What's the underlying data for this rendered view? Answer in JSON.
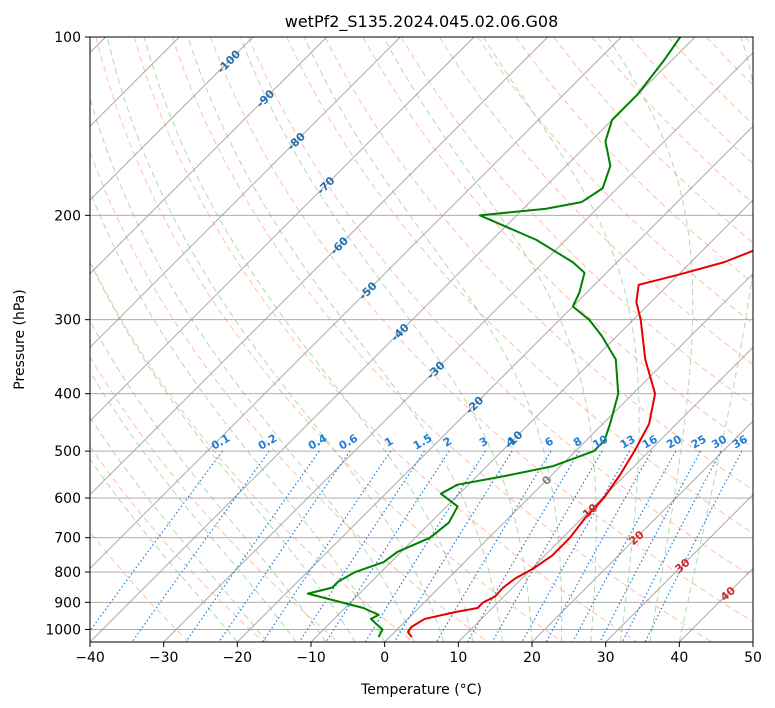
{
  "chart_data": {
    "type": "line",
    "subtype": "skew-t log-p",
    "title": "wetPf2_S135.2024.045.02.06.G08",
    "xlabel": "Temperature (°C)",
    "ylabel": "Pressure (hPa)",
    "xlim": [
      -40,
      50
    ],
    "ylim": [
      1050,
      100
    ],
    "yscale": "log",
    "grid": true,
    "x_ticks": [
      "−40",
      "−30",
      "−20",
      "−10",
      "0",
      "10",
      "20",
      "30",
      "40",
      "50"
    ],
    "y_ticks": [
      "100",
      "200",
      "300",
      "400",
      "500",
      "600",
      "700",
      "800",
      "900",
      "1000"
    ],
    "colors": {
      "temperature": "#e60000",
      "dewpoint": "#008000",
      "isotherm": "#a0a0a0",
      "dry_adiabat": "#ff8c66",
      "moist_adiabat": "#66b366",
      "mixing_ratio": "#1e7fd9",
      "isotherm_label": "#1f6fb0",
      "dry_adiabat_label": "#d62728",
      "zero_label": "#808080"
    },
    "isotherm_labels": [
      "-100",
      "-90",
      "-80",
      "-70",
      "-60",
      "-50",
      "-40",
      "-30",
      "-20",
      "-10",
      "0"
    ],
    "dry_adiabat_labels": [
      "10",
      "20",
      "30",
      "40"
    ],
    "mixing_ratio_labels": [
      "0.1",
      "0.2",
      "0.4",
      "0.6",
      "1",
      "1.5",
      "2",
      "3",
      "4",
      "6",
      "8",
      "10",
      "13",
      "16",
      "20",
      "25",
      "30",
      "36"
    ],
    "series": [
      {
        "key": "temperature",
        "points": [
          [
            1030,
            3.0
          ],
          [
            1010,
            1.8
          ],
          [
            990,
            1.6
          ],
          [
            960,
            2.3
          ],
          [
            935,
            5.5
          ],
          [
            920,
            8.0
          ],
          [
            900,
            8.0
          ],
          [
            880,
            8.8
          ],
          [
            850,
            8.7
          ],
          [
            820,
            9.1
          ],
          [
            790,
            10.2
          ],
          [
            750,
            11.0
          ],
          [
            700,
            11.0
          ],
          [
            650,
            10.4
          ],
          [
            600,
            10.2
          ],
          [
            550,
            9.3
          ],
          [
            500,
            8.0
          ],
          [
            450,
            6.3
          ],
          [
            400,
            3.0
          ],
          [
            350,
            -3.0
          ],
          [
            300,
            -9.0
          ],
          [
            280,
            -12.0
          ],
          [
            262,
            -14.0
          ],
          [
            252,
            -10.0
          ],
          [
            240,
            -5.5
          ],
          [
            225,
            -2.0
          ],
          [
            210,
            1.0
          ],
          [
            200,
            3.0
          ],
          [
            190,
            3.5
          ],
          [
            175,
            3.0
          ],
          [
            160,
            2.5
          ],
          [
            145,
            1.5
          ],
          [
            130,
            -1.0
          ],
          [
            122,
            -2.0
          ],
          [
            112,
            -2.0
          ],
          [
            105,
            -3.5
          ],
          [
            100,
            -5.0
          ]
        ]
      },
      {
        "key": "dewpoint",
        "points": [
          [
            1030,
            -1.5
          ],
          [
            1000,
            -2.0
          ],
          [
            960,
            -5.0
          ],
          [
            945,
            -4.5
          ],
          [
            920,
            -7.5
          ],
          [
            870,
            -17.0
          ],
          [
            850,
            -14.5
          ],
          [
            830,
            -14.5
          ],
          [
            800,
            -13.5
          ],
          [
            770,
            -11.0
          ],
          [
            740,
            -10.5
          ],
          [
            700,
            -8.0
          ],
          [
            660,
            -7.5
          ],
          [
            620,
            -8.5
          ],
          [
            590,
            -12.5
          ],
          [
            570,
            -11.5
          ],
          [
            550,
            -6.0
          ],
          [
            530,
            -1.0
          ],
          [
            500,
            2.5
          ],
          [
            480,
            2.5
          ],
          [
            450,
            1.0
          ],
          [
            400,
            -2.0
          ],
          [
            350,
            -7.0
          ],
          [
            320,
            -12.0
          ],
          [
            300,
            -16.0
          ],
          [
            285,
            -20.0
          ],
          [
            270,
            -21.0
          ],
          [
            250,
            -23.0
          ],
          [
            240,
            -26.0
          ],
          [
            220,
            -34.0
          ],
          [
            200,
            -45.0
          ],
          [
            195,
            -37.0
          ],
          [
            190,
            -33.0
          ],
          [
            180,
            -32.0
          ],
          [
            165,
            -34.0
          ],
          [
            150,
            -38.0
          ],
          [
            138,
            -40.0
          ],
          [
            125,
            -40.0
          ],
          [
            110,
            -41.0
          ],
          [
            100,
            -42.0
          ]
        ]
      }
    ]
  }
}
